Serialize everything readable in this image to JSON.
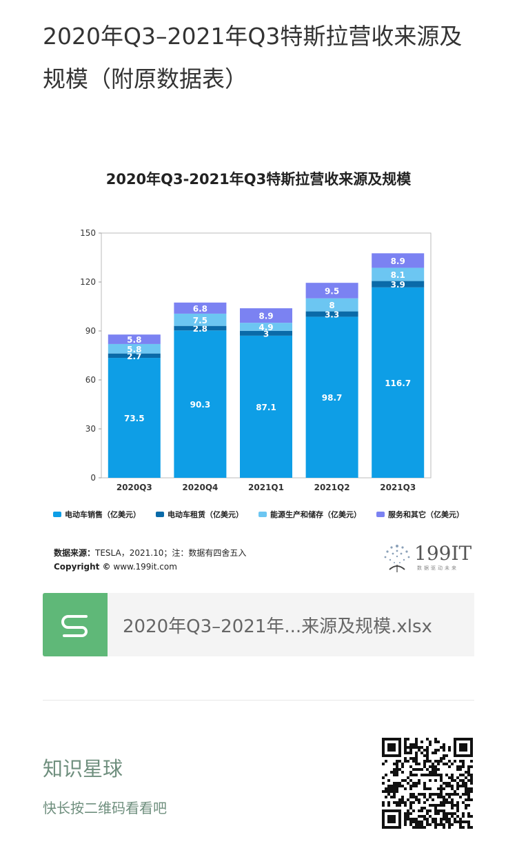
{
  "page": {
    "title": "2020年Q3–2021年Q3特斯拉营收来源及规模（附原数据表）"
  },
  "chart_data": {
    "type": "bar",
    "stacked": true,
    "title": "2020年Q3-2021年Q3特斯拉营收来源及规模",
    "categories": [
      "2020Q3",
      "2020Q4",
      "2021Q1",
      "2021Q2",
      "2021Q3"
    ],
    "series": [
      {
        "name": "电动车销售（亿美元）",
        "color": "#0e9ee6",
        "values": [
          73.5,
          90.3,
          87.1,
          98.7,
          116.7
        ]
      },
      {
        "name": "电动车租赁（亿美元）",
        "color": "#0a6aa8",
        "values": [
          2.7,
          2.8,
          3,
          3.3,
          3.9
        ]
      },
      {
        "name": "能源生产和储存（亿美元）",
        "color": "#6cc6f2",
        "values": [
          5.8,
          7.5,
          4.9,
          8,
          8.1
        ]
      },
      {
        "name": "服务和其它（亿美元）",
        "color": "#7b82f2",
        "values": [
          5.8,
          6.8,
          8.9,
          9.5,
          8.9
        ]
      }
    ],
    "ylim": [
      0,
      150
    ],
    "yticks": [
      0,
      30,
      60,
      90,
      120,
      150
    ],
    "legend_position": "bottom"
  },
  "source": {
    "label": "数据来源：",
    "text": "TESLA，2021.10；注：数据有四舍五入",
    "copyright_label": "Copyright ©",
    "copyright_url": "www.199it.com"
  },
  "brand": {
    "name": "199IT",
    "tagline": "数据驱动未来"
  },
  "file": {
    "name": "2020年Q3–2021年...来源及规模.xlsx"
  },
  "knowledge": {
    "title": "知识星球",
    "subtitle": "快长按二维码看看吧"
  }
}
